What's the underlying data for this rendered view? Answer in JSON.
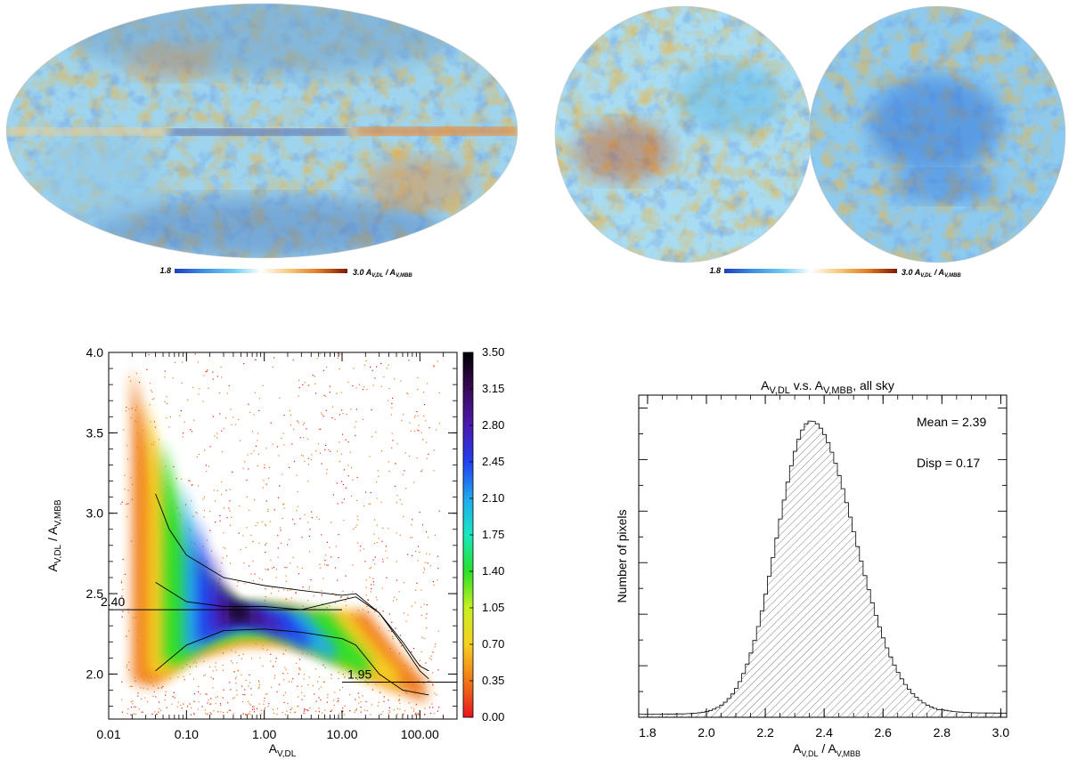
{
  "colors": {
    "map_scale": [
      "#1d3fbf",
      "#3f8fe0",
      "#6ecbf0",
      "#ffffff",
      "#f5c97a",
      "#e07a22",
      "#7a1a05"
    ],
    "density_scale": [
      "#e8141e",
      "#f07818",
      "#f6d020",
      "#c8f020",
      "#28e028",
      "#18e8c0",
      "#20a8f0",
      "#2040f0",
      "#4a1ab0",
      "#3a0a58",
      "#000000"
    ]
  },
  "top_left_map": {
    "cbar_min": "1.8",
    "cbar_max": "3.0",
    "cbar_quantity": "A",
    "cbar_sub1": "V,DL",
    "cbar_sep": " / A",
    "cbar_sub2": "V,MBB"
  },
  "top_right_map": {
    "cbar_min": "1.8",
    "cbar_max": "3.0",
    "cbar_quantity": "A",
    "cbar_sub1": "V,DL",
    "cbar_sep": " / A",
    "cbar_sub2": "V,MBB"
  },
  "chart_data": [
    {
      "type": "heatmap",
      "title": "",
      "xlabel_main": "A",
      "xlabel_sub": "V,DL",
      "ylabel_main": "A",
      "ylabel_sub1": "V,DL",
      "ylabel_sep": " / A",
      "ylabel_sub2": "V,MBB",
      "x_scale": "log",
      "xlim": [
        0.01,
        300
      ],
      "ylim": [
        1.72,
        4.0
      ],
      "x_ticks": [
        0.01,
        0.1,
        1,
        10,
        100
      ],
      "x_tick_labels": [
        "0.01",
        "0.10",
        "1.00",
        "10.00",
        "100.00"
      ],
      "y_ticks": [
        2.0,
        2.5,
        3.0,
        3.5,
        4.0
      ],
      "y_tick_labels": [
        "2.0",
        "2.5",
        "3.0",
        "3.5",
        "4.0"
      ],
      "colorbar_ticks": [
        "0.00",
        "0.35",
        "0.70",
        "1.05",
        "1.40",
        "1.75",
        "2.10",
        "2.45",
        "2.80",
        "3.15",
        "3.50"
      ],
      "colorbar_range": [
        0,
        3.5
      ],
      "median_curve": {
        "x": [
          0.04,
          0.1,
          0.3,
          1,
          3,
          10,
          15,
          30,
          60,
          100,
          130
        ],
        "y": [
          2.57,
          2.45,
          2.42,
          2.42,
          2.4,
          2.46,
          2.48,
          2.38,
          2.18,
          2.02,
          1.97
        ]
      },
      "upper_curve": {
        "x": [
          0.04,
          0.06,
          0.1,
          0.3,
          1,
          3,
          10,
          15,
          30,
          60,
          100,
          130
        ],
        "y": [
          3.12,
          2.9,
          2.74,
          2.6,
          2.55,
          2.52,
          2.49,
          2.5,
          2.38,
          2.2,
          2.05,
          2.02
        ]
      },
      "lower_curve": {
        "x": [
          0.04,
          0.1,
          0.3,
          1,
          3,
          10,
          15,
          30,
          60,
          100,
          130
        ],
        "y": [
          2.02,
          2.18,
          2.27,
          2.28,
          2.26,
          2.22,
          2.18,
          2.0,
          1.9,
          1.88,
          1.87
        ]
      },
      "reference_lines": [
        {
          "label": "2.40",
          "y": 2.4,
          "x_from": 0.01,
          "x_to": 10
        },
        {
          "label": "1.95",
          "y": 1.95,
          "x_from": 10,
          "x_to": 300
        }
      ]
    },
    {
      "type": "bar",
      "title_main": "A",
      "title_sub1": "V,DL",
      "title_mid": " v.s. A",
      "title_sub2": "V,MBB",
      "title_tail": ", all sky",
      "xlabel_main": "A",
      "xlabel_sub1": "V,DL",
      "xlabel_sep": " / A",
      "xlabel_sub2": "V,MBB",
      "ylabel": "Number of pixels",
      "xlim": [
        1.77,
        3.02
      ],
      "ylim": [
        0,
        1.0
      ],
      "x_ticks": [
        1.8,
        2.0,
        2.2,
        2.4,
        2.6,
        2.8,
        3.0
      ],
      "x_tick_labels": [
        "1.8",
        "2.0",
        "2.2",
        "2.4",
        "2.6",
        "2.8",
        "3.0"
      ],
      "annotations": [
        "Mean =  2.39",
        "Disp =  0.17"
      ],
      "mean": 2.39,
      "disp": 0.17,
      "bin_width": 0.0125
    }
  ]
}
